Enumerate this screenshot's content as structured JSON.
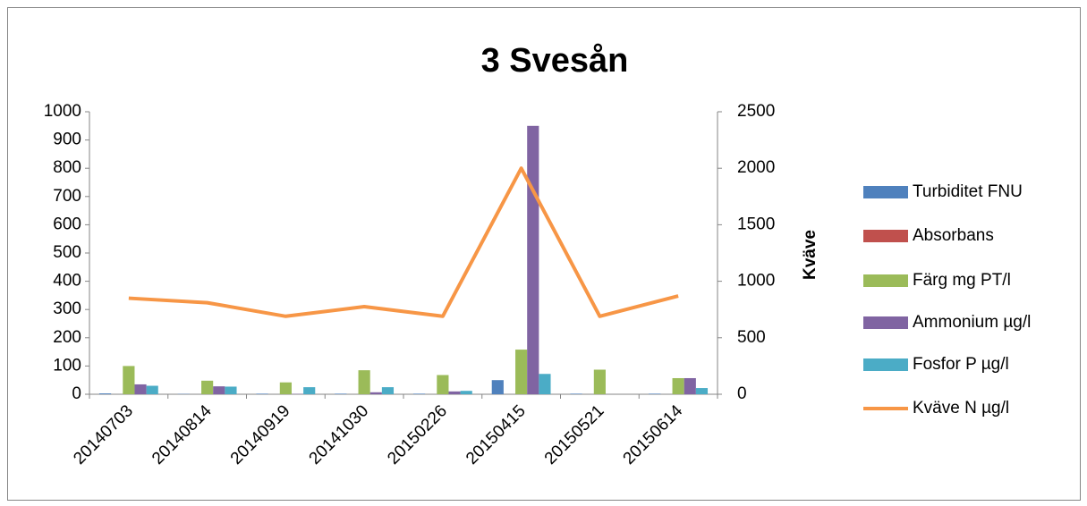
{
  "chart_data": {
    "type": "bar",
    "title": "3 Svesån",
    "y2_label": "Kväve",
    "categories": [
      "20140703",
      "20140814",
      "20140919",
      "20141030",
      "20150226",
      "20150415",
      "20150521",
      "20150614"
    ],
    "series": [
      {
        "name": "Turbiditet FNU",
        "color": "#4f81bd",
        "values": [
          3,
          1,
          2,
          2,
          2,
          50,
          2,
          2
        ]
      },
      {
        "name": "Absorbans",
        "color": "#c0504d",
        "values": [
          0,
          0,
          0,
          0,
          0,
          0,
          0,
          0
        ]
      },
      {
        "name": "Färg mg PT/l",
        "color": "#9bbb59",
        "values": [
          100,
          48,
          42,
          85,
          68,
          158,
          87,
          57
        ]
      },
      {
        "name": "Ammonium µg/l",
        "color": "#8064a2",
        "values": [
          35,
          28,
          1,
          7,
          10,
          950,
          0,
          57
        ]
      },
      {
        "name": "Fosfor P µg/l",
        "color": "#4bacc6",
        "values": [
          30,
          27,
          25,
          25,
          12,
          72,
          0,
          22
        ]
      },
      {
        "name": "Kväve N µg/l",
        "color": "#f79646",
        "type": "line",
        "axis": "y2",
        "values": [
          850,
          810,
          690,
          775,
          690,
          2000,
          690,
          870
        ]
      }
    ],
    "ylim": [
      0,
      1000
    ],
    "yticks": [
      0,
      100,
      200,
      300,
      400,
      500,
      600,
      700,
      800,
      900,
      1000
    ],
    "y2lim": [
      0,
      2500
    ],
    "y2ticks": [
      0,
      500,
      1000,
      1500,
      2000,
      2500
    ],
    "legend": "right"
  }
}
